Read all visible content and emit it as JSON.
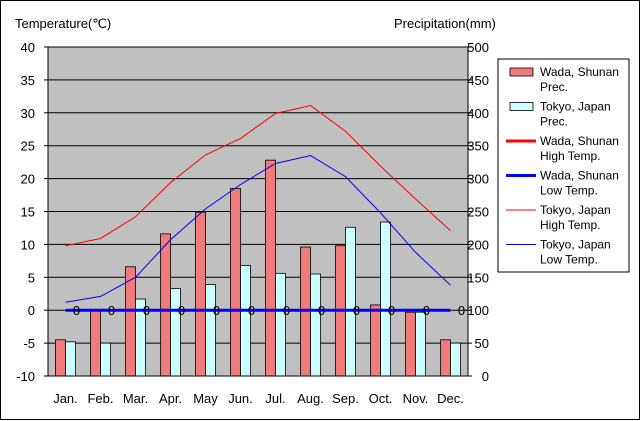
{
  "chart_data": {
    "type": "bar",
    "title": "",
    "left_axis_label": "Temperature(℃)",
    "right_axis_label": "Precipitation(mm)",
    "categories": [
      "Jan.",
      "Feb.",
      "Mar.",
      "Apr.",
      "May",
      "Jun.",
      "Jul.",
      "Aug.",
      "Sep.",
      "Oct.",
      "Nov.",
      "Dec."
    ],
    "left_ylim": [
      -10,
      40
    ],
    "left_ticks": [
      "40",
      "35",
      "30",
      "25",
      "20",
      "15",
      "10",
      "5",
      "0",
      "-5",
      "-10"
    ],
    "right_ylim": [
      0,
      500
    ],
    "right_ticks": [
      "500",
      "450",
      "400",
      "350",
      "300",
      "250",
      "200",
      "150",
      "100",
      "50",
      "0"
    ],
    "bar_series": [
      {
        "name": "Wada, Shunan Prec.",
        "color": "#f07b7b",
        "values": [
          55,
          100,
          166,
          216,
          249,
          285,
          328,
          196,
          198,
          108,
          97,
          55
        ]
      },
      {
        "name": "Tokyo, Japan Prec.",
        "color": "#ccffff",
        "values": [
          52,
          50,
          117,
          133,
          139,
          168,
          156,
          155,
          226,
          234,
          97,
          50
        ]
      }
    ],
    "line_series": [
      {
        "name": "Wada, Shunan High Temp.",
        "color": "#ff0000",
        "width": 3,
        "values": [
          null,
          null,
          null,
          null,
          null,
          null,
          null,
          null,
          null,
          null,
          null,
          null
        ]
      },
      {
        "name": "Wada, Shunan Low Temp.",
        "color": "#0000ff",
        "width": 3,
        "values": [
          0,
          0,
          0,
          0,
          0,
          0,
          0,
          0,
          0,
          0,
          0,
          0
        ]
      },
      {
        "name": "Tokyo, Japan High Temp.",
        "color": "#ff0000",
        "width": 1,
        "values": [
          9.8,
          10.9,
          14.2,
          19.4,
          23.6,
          26.1,
          29.9,
          31.1,
          27.2,
          21.9,
          16.9,
          12.1
        ]
      },
      {
        "name": "Tokyo, Japan Low Temp.",
        "color": "#0000ff",
        "width": 1,
        "values": [
          1.2,
          2.1,
          5.0,
          10.7,
          15.4,
          19.1,
          22.3,
          23.5,
          20.3,
          14.8,
          8.8,
          3.8
        ]
      }
    ],
    "zero_marker_label": "0",
    "plot_background": "#c0c0c0"
  },
  "legend": {
    "items": [
      {
        "line1": "Wada, Shunan",
        "line2": "Prec."
      },
      {
        "line1": "Tokyo, Japan",
        "line2": "Prec."
      },
      {
        "line1": "Wada, Shunan",
        "line2": "High Temp."
      },
      {
        "line1": "Wada, Shunan",
        "line2": "Low Temp."
      },
      {
        "line1": "Tokyo, Japan",
        "line2": "High Temp."
      },
      {
        "line1": "Tokyo, Japan",
        "line2": "Low Temp."
      }
    ]
  }
}
